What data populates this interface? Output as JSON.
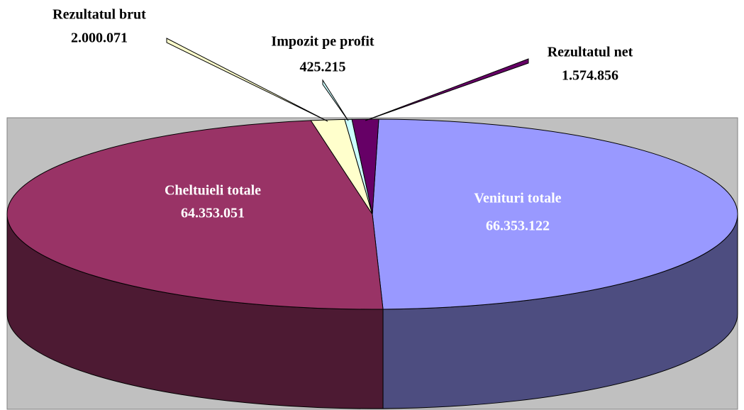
{
  "chart_data": {
    "type": "pie3d",
    "categories": [
      "Venituri totale",
      "Cheltuieli totale",
      "Rezultatul brut",
      "Impozit pe profit",
      "Rezultatul net"
    ],
    "values": [
      66353122,
      64353051,
      2000071,
      425215,
      1574856
    ],
    "value_labels": [
      "66.353.122",
      "64.353.051",
      "2.000.071",
      "425.215",
      "1.574.856"
    ],
    "colors": [
      "#9999ff",
      "#993366",
      "#ffffcc",
      "#ccffff",
      "#660066"
    ]
  }
}
